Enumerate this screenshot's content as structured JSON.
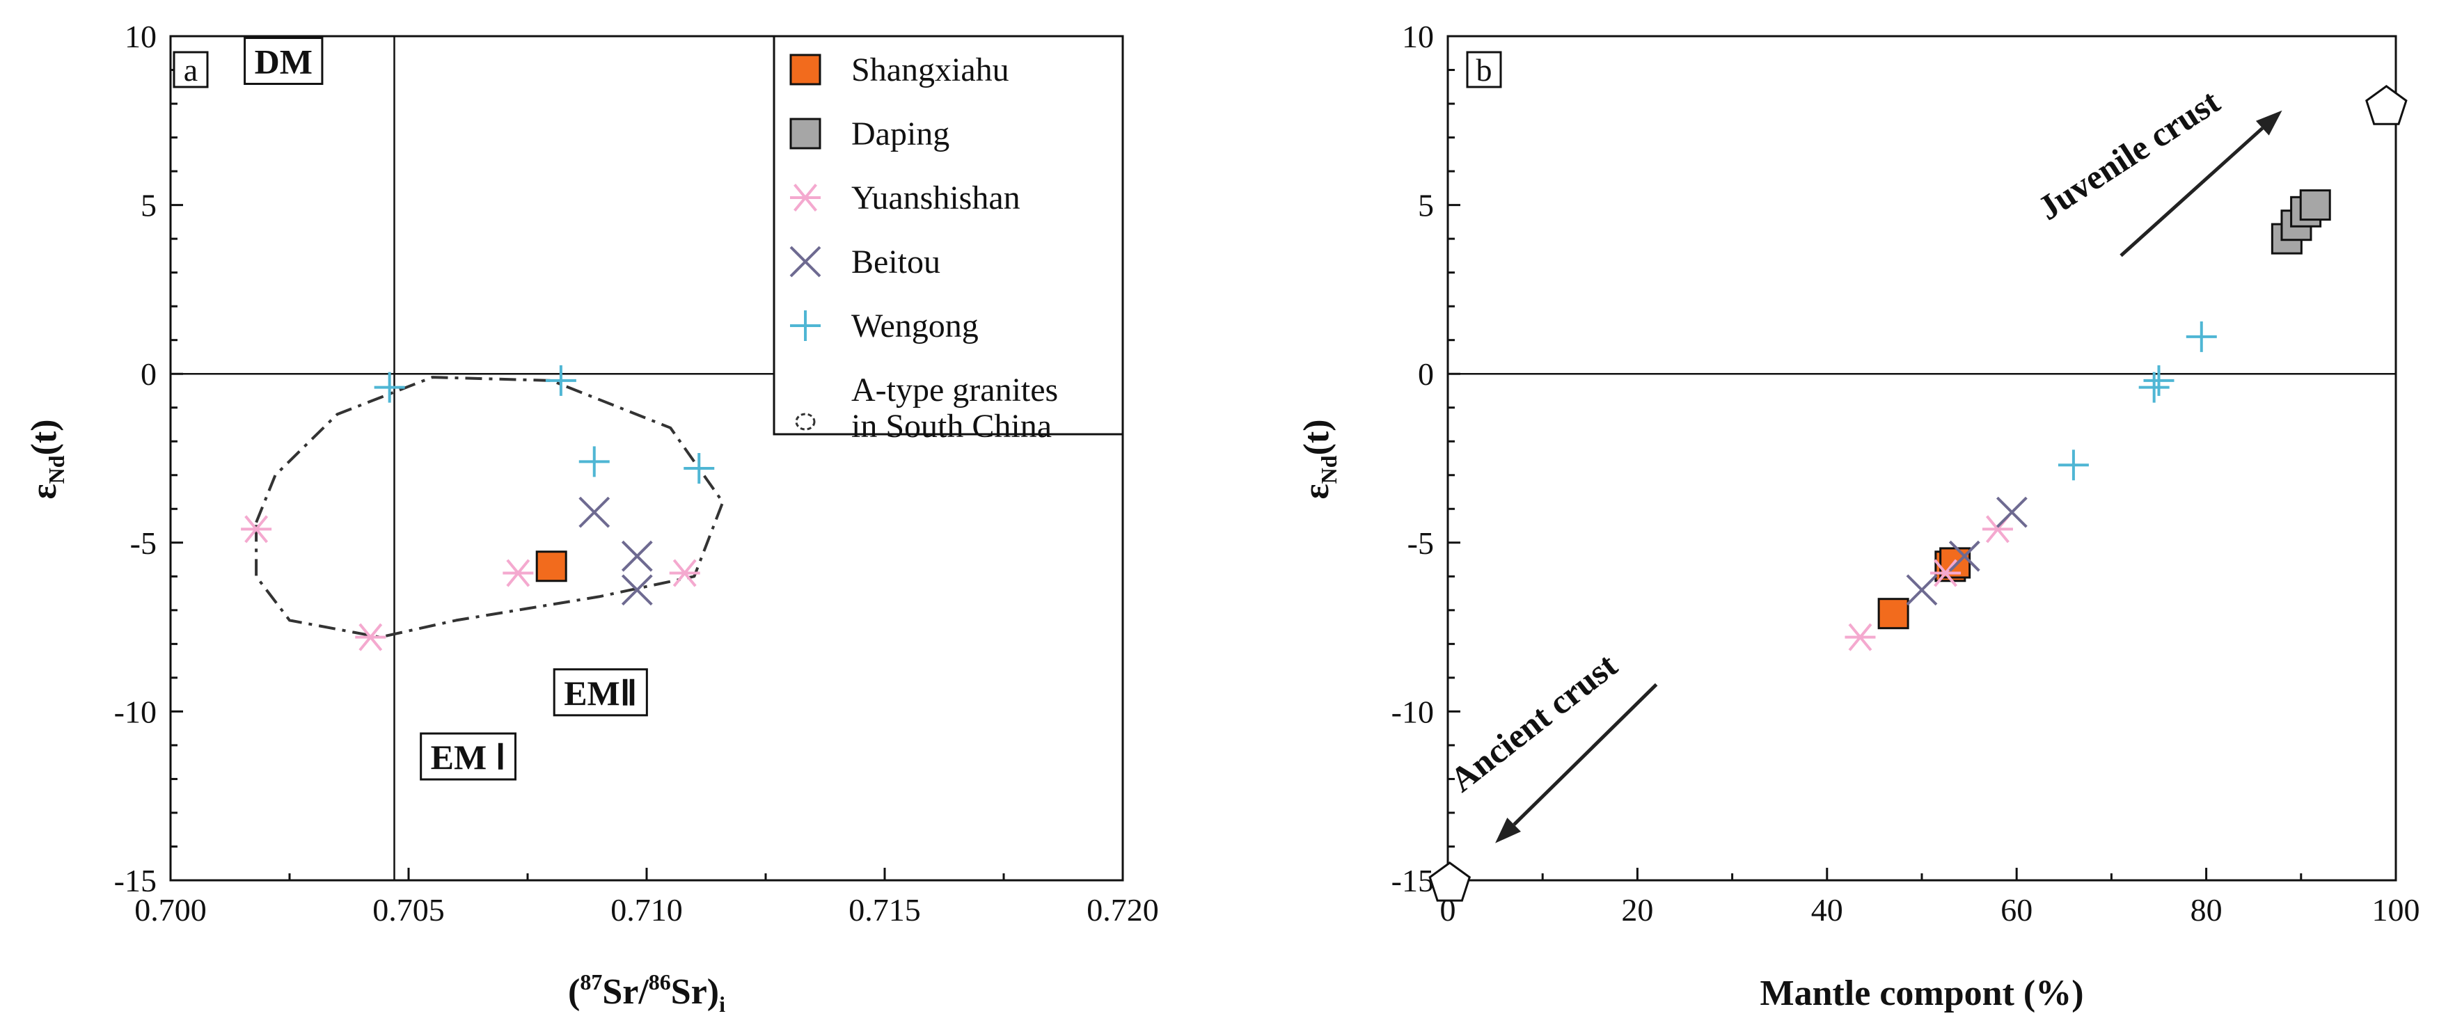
{
  "colors": {
    "shangxiahu": "#f26b1d",
    "daping": "#a6a6a6",
    "yuanshishan": "#f4a9cf",
    "beitou": "#6e6a91",
    "wengong": "#4fb6d4"
  },
  "legend": [
    {
      "key": "shangxiahu",
      "label": "Shangxiahu",
      "marker": "square-orange"
    },
    {
      "key": "daping",
      "label": "Daping",
      "marker": "square-gray"
    },
    {
      "key": "yuanshishan",
      "label": "Yuanshishan",
      "marker": "asterisk"
    },
    {
      "key": "beitou",
      "label": "Beitou",
      "marker": "cross-x"
    },
    {
      "key": "wengong",
      "label": "Wengong",
      "marker": "plus"
    },
    {
      "key": "field",
      "label_line1": "A-type granites",
      "label_line2": "in South China",
      "marker": "dashed-ellipse"
    }
  ],
  "chart_data": [
    {
      "panel": "a",
      "type": "scatter",
      "xlabel_prefix": "(",
      "xlabel_sup1": "87",
      "xlabel_mid1": "Sr/",
      "xlabel_sup2": "86",
      "xlabel_mid2": "Sr)",
      "xlabel_sub": "i",
      "ylabel_main": "ε",
      "ylabel_sub": "Nd",
      "ylabel_suffix": "(t)",
      "xlim": [
        0.7,
        0.72
      ],
      "ylim": [
        -15,
        10
      ],
      "xticks": [
        "0.700",
        "0.705",
        "0.710",
        "0.715",
        "0.720"
      ],
      "xtick_values": [
        0.7,
        0.705,
        0.71,
        0.715,
        0.72
      ],
      "yticks": [
        "10",
        "5",
        "0",
        "-5",
        "-10",
        "-15"
      ],
      "ytick_values": [
        10,
        5,
        0,
        -5,
        -10,
        -15
      ],
      "vline_x": 0.7047,
      "hline_y": 0,
      "regions": {
        "dm": "DM",
        "em1": "EM Ⅰ",
        "em2": "EMⅡ"
      },
      "region_positions": {
        "dm": [
          0.7015,
          9.0
        ],
        "em1": [
          0.7052,
          -11.6
        ],
        "em2": [
          0.708,
          -9.7
        ]
      },
      "series": [
        {
          "name": "Shangxiahu",
          "key": "shangxiahu",
          "points": [
            [
              0.708,
              -5.7
            ]
          ]
        },
        {
          "name": "Yuanshishan",
          "key": "yuanshishan",
          "points": [
            [
              0.7018,
              -4.6
            ],
            [
              0.7042,
              -7.8
            ],
            [
              0.7073,
              -5.9
            ],
            [
              0.7108,
              -5.9
            ]
          ]
        },
        {
          "name": "Beitou",
          "key": "beitou",
          "points": [
            [
              0.7089,
              -4.1
            ],
            [
              0.7098,
              -5.4
            ],
            [
              0.7098,
              -6.4
            ]
          ]
        },
        {
          "name": "Wengong",
          "key": "wengong",
          "points": [
            [
              0.7046,
              -0.4
            ],
            [
              0.7082,
              -0.2
            ],
            [
              0.7089,
              -2.6
            ],
            [
              0.7111,
              -2.8
            ]
          ]
        }
      ],
      "field_outline": [
        [
          0.7018,
          -4.4
        ],
        [
          0.7022,
          -3.0
        ],
        [
          0.7035,
          -1.2
        ],
        [
          0.7055,
          -0.1
        ],
        [
          0.708,
          -0.2
        ],
        [
          0.7105,
          -1.6
        ],
        [
          0.7116,
          -3.8
        ],
        [
          0.711,
          -6.0
        ],
        [
          0.709,
          -6.6
        ],
        [
          0.706,
          -7.3
        ],
        [
          0.7044,
          -7.8
        ],
        [
          0.7025,
          -7.3
        ],
        [
          0.7018,
          -6.0
        ],
        [
          0.7018,
          -4.4
        ]
      ]
    },
    {
      "panel": "b",
      "type": "scatter",
      "xlabel": "Mantle  compont (%)",
      "ylabel_main": "ε",
      "ylabel_sub": "Nd",
      "ylabel_suffix": "(t)",
      "xlim": [
        0,
        100
      ],
      "ylim": [
        -15,
        10
      ],
      "xticks": [
        "0",
        "20",
        "40",
        "60",
        "80",
        "100"
      ],
      "xtick_values": [
        0,
        20,
        40,
        60,
        80,
        100
      ],
      "yticks": [
        "10",
        "5",
        "0",
        "-5",
        "-10",
        "-15"
      ],
      "ytick_values": [
        10,
        5,
        0,
        -5,
        -10,
        -15
      ],
      "hline_y": 0,
      "series": [
        {
          "name": "Shangxiahu",
          "key": "shangxiahu",
          "points": [
            [
              47,
              -7.1
            ],
            [
              53,
              -5.7
            ],
            [
              53.5,
              -5.6
            ]
          ]
        },
        {
          "name": "Daping",
          "key": "daping",
          "points": [
            [
              88.5,
              4.0
            ],
            [
              89.5,
              4.4
            ],
            [
              90.5,
              4.8
            ],
            [
              91.5,
              5.0
            ]
          ]
        },
        {
          "name": "Yuanshishan",
          "key": "yuanshishan",
          "points": [
            [
              43.5,
              -7.8
            ],
            [
              52.5,
              -5.9
            ],
            [
              58,
              -4.6
            ]
          ]
        },
        {
          "name": "Beitou",
          "key": "beitou",
          "points": [
            [
              50,
              -6.4
            ],
            [
              54.5,
              -5.4
            ],
            [
              59.5,
              -4.1
            ]
          ]
        },
        {
          "name": "Wengong",
          "key": "wengong",
          "points": [
            [
              66,
              -2.7
            ],
            [
              74.5,
              -0.4
            ],
            [
              75,
              -0.2
            ],
            [
              79.5,
              1.1
            ]
          ]
        }
      ],
      "end_members": [
        [
          0.2,
          -15.1
        ],
        [
          99,
          7.9
        ]
      ],
      "arrows": [
        {
          "label": "Juvenile crust",
          "from": [
            71,
            3.5
          ],
          "to": [
            88,
            7.8
          ],
          "label_at": [
            72.5,
            6.2
          ],
          "label_angle": -33
        },
        {
          "label": "Ancient crust",
          "from": [
            22,
            -9.2
          ],
          "to": [
            5,
            -13.9
          ],
          "label_at": [
            9.8,
            -10.6
          ],
          "label_angle": -38
        }
      ]
    }
  ]
}
